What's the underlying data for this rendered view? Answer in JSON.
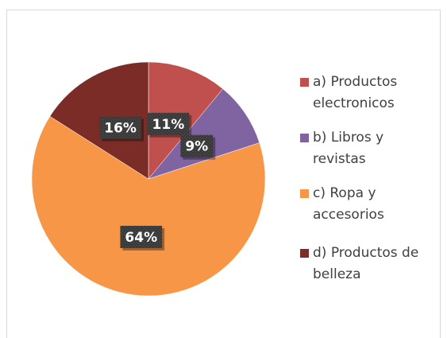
{
  "chart_data": {
    "type": "pie",
    "categories": [
      "a) Productos electronicos",
      "b) Libros y revistas",
      "c) Ropa y accesorios",
      "d) Productos de belleza"
    ],
    "values": [
      11,
      9,
      64,
      16
    ],
    "value_labels": [
      "11%",
      "9%",
      "64%",
      "16%"
    ],
    "colors": [
      "#c0504d",
      "#8064a2",
      "#f79646",
      "#7b2c26"
    ],
    "legend": "right"
  }
}
